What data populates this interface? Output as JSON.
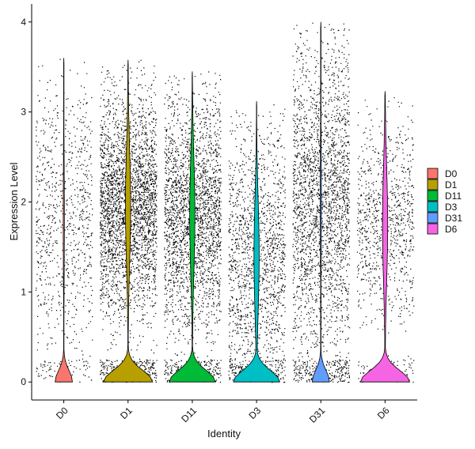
{
  "chart_data": {
    "type": "violin",
    "title": "",
    "xlabel": "Identity",
    "ylabel": "Expression Level",
    "ylim": [
      -0.2,
      4.2
    ],
    "yticks": [
      0,
      1,
      2,
      3,
      4
    ],
    "grid": false,
    "legend": {
      "position": "right"
    },
    "categories": [
      "D0",
      "D1",
      "D11",
      "D3",
      "D31",
      "D6"
    ],
    "series": [
      {
        "name": "D0",
        "color": "#F8766D",
        "max": 3.6,
        "points": 900,
        "peak_zero_width": 0.3,
        "jitter_center": 1.8,
        "jitter_spread": 0.75
      },
      {
        "name": "D1",
        "color": "#B79F00",
        "max": 3.58,
        "points": 4200,
        "peak_zero_width": 0.85,
        "jitter_center": 1.95,
        "jitter_spread": 0.6
      },
      {
        "name": "D11",
        "color": "#00BA38",
        "max": 3.45,
        "points": 4400,
        "peak_zero_width": 0.8,
        "jitter_center": 1.85,
        "jitter_spread": 0.65
      },
      {
        "name": "D3",
        "color": "#00BFC4",
        "max": 3.12,
        "points": 1700,
        "peak_zero_width": 0.8,
        "jitter_center": 1.4,
        "jitter_spread": 0.75
      },
      {
        "name": "D31",
        "color": "#619CFF",
        "max": 4.0,
        "points": 3600,
        "peak_zero_width": 0.3,
        "jitter_center": 2.0,
        "jitter_spread": 0.85
      },
      {
        "name": "D6",
        "color": "#F564E3",
        "max": 3.23,
        "points": 1000,
        "peak_zero_width": 0.85,
        "jitter_center": 1.75,
        "jitter_spread": 0.55
      }
    ]
  }
}
